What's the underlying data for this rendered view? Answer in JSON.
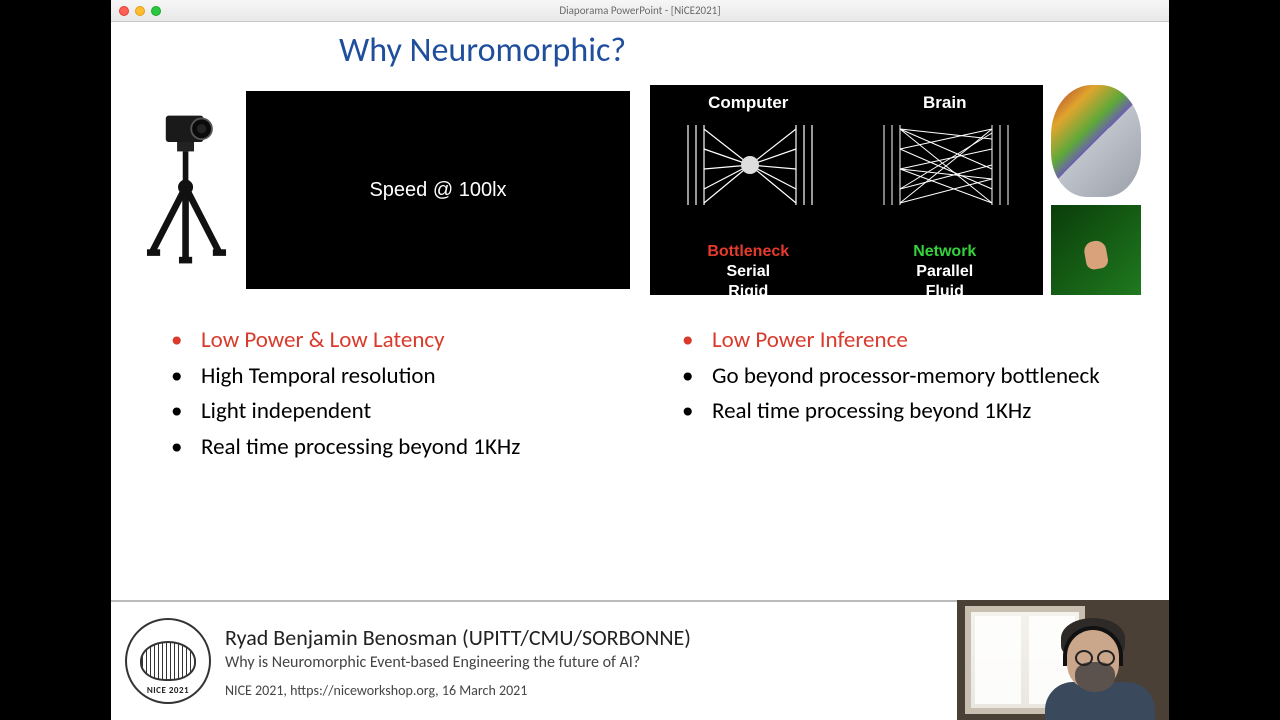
{
  "window": {
    "title": "Diaporama PowerPoint - [NiCE2021]"
  },
  "slide": {
    "title": "Why Neuromorphic?",
    "title_color": "#1f4e9c",
    "left": {
      "video_text": "Speed @ 100lx",
      "bullets": [
        {
          "text": "Low Power & Low Latency",
          "highlight": true
        },
        {
          "text": "High Temporal resolution",
          "highlight": false
        },
        {
          "text": "Light independent",
          "highlight": false
        },
        {
          "text": "Real time processing beyond 1KHz",
          "highlight": false
        }
      ]
    },
    "right": {
      "diagram": {
        "computer": {
          "label": "Computer",
          "tag": "Bottleneck",
          "tag_color": "#e53b2c",
          "p1": "Serial",
          "p2": "Rigid"
        },
        "brain": {
          "label": "Brain",
          "tag": "Network",
          "tag_color": "#35d23b",
          "p1": "Parallel",
          "p2": "Fluid"
        }
      },
      "bullets": [
        {
          "text": "Low Power Inference",
          "highlight": true
        },
        {
          "text": "Go beyond processor-memory bottleneck",
          "highlight": false
        },
        {
          "text": "Real time processing beyond 1KHz",
          "highlight": false
        }
      ]
    },
    "highlight_color": "#d93a2b"
  },
  "lower_third": {
    "logo_label": "NICE 2021",
    "speaker": "Ryad Benjamin Benosman (UPITT/CMU/SORBONNE)",
    "talk": "Why is Neuromorphic Event-based Engineering the future of AI?",
    "conf": "NICE 2021, https://niceworkshop.org, 16 March 2021"
  }
}
